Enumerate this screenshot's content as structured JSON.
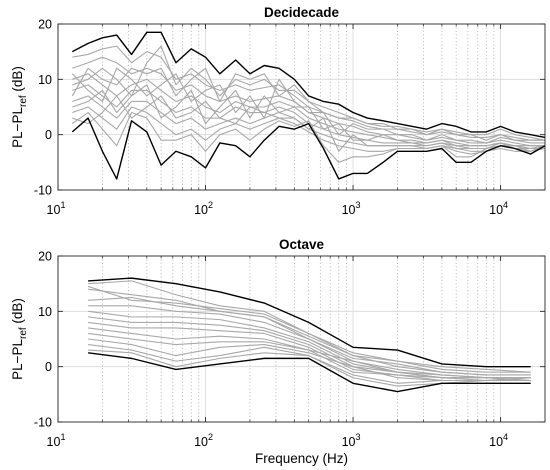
{
  "chart_data": [
    {
      "type": "line",
      "title": "Decidecade",
      "xlabel": "",
      "ylabel": {
        "main": "PL−PL",
        "sub": "ref",
        "unit": " (dB)"
      },
      "xscale": "log",
      "xlim": [
        10,
        20000
      ],
      "ylim": [
        -10,
        20
      ],
      "yticks": [
        -10,
        0,
        10,
        20
      ],
      "xticks": [
        {
          "base": "10",
          "exp": "1",
          "value": 10
        },
        {
          "base": "10",
          "exp": "2",
          "value": 100
        },
        {
          "base": "10",
          "exp": "3",
          "value": 1000
        },
        {
          "base": "10",
          "exp": "4",
          "value": 10000
        }
      ],
      "grid": {
        "major": true,
        "minor_x_dotted": true
      },
      "envelope": {
        "x": [
          12.5,
          16,
          20,
          25,
          31.5,
          40,
          50,
          63,
          80,
          100,
          125,
          160,
          200,
          250,
          315,
          400,
          500,
          630,
          800,
          1000,
          1250,
          1600,
          2000,
          2500,
          3150,
          4000,
          5000,
          6300,
          8000,
          10000,
          12500,
          16000,
          20000
        ],
        "upper": [
          15,
          16.5,
          17.5,
          18,
          14.5,
          18.5,
          18.5,
          13,
          15.5,
          14,
          11,
          13.5,
          11,
          12.5,
          12,
          10,
          7,
          6,
          5.5,
          4,
          3,
          2.5,
          2,
          1.5,
          1,
          2,
          1.5,
          0.5,
          0.5,
          1.5,
          0.5,
          0,
          -0.5
        ],
        "lower": [
          0.5,
          3,
          -3,
          -8,
          2.5,
          0.5,
          -5.5,
          -3,
          -4,
          -6,
          -1.5,
          -2,
          -4,
          -1,
          1.5,
          1,
          2,
          -2.5,
          -8,
          -7,
          -7,
          -5,
          -3,
          -3,
          -3,
          -2.5,
          -5,
          -5,
          -3,
          -2,
          -2.5,
          -3.5,
          -2
        ]
      },
      "series_color": "#a8a8a8",
      "envelope_color": "#000000",
      "series": [
        {
          "values": [
            14,
            14.5,
            15.5,
            16,
            13,
            15,
            14,
            10,
            11,
            9,
            8,
            9,
            8,
            8.5,
            9,
            7,
            5,
            4,
            3,
            2.5,
            1.5,
            1,
            1,
            0.5,
            0,
            0.5,
            0,
            -0.5,
            -0.5,
            0,
            -0.5,
            -1,
            -1
          ]
        },
        {
          "values": [
            12,
            13,
            14,
            13,
            11,
            12,
            11,
            8,
            9,
            7,
            6,
            7,
            6,
            6.5,
            7,
            6,
            4,
            3,
            2,
            1.5,
            0.5,
            0,
            0,
            -0.5,
            -1,
            -0.5,
            -1,
            -1.5,
            -1.5,
            -1,
            -1.5,
            -2,
            -2
          ]
        },
        {
          "values": [
            10,
            11,
            9,
            7,
            9,
            10,
            8,
            6,
            7,
            5,
            4,
            6,
            5,
            5,
            6,
            5,
            3,
            2,
            1,
            0.5,
            0,
            -0.5,
            -1,
            -1,
            -1.5,
            -1,
            -1.5,
            -2,
            -2,
            -1.5,
            -2,
            -2.5,
            -2.5
          ]
        },
        {
          "values": [
            8,
            9,
            7,
            5,
            8,
            8,
            6,
            4,
            5,
            3,
            3,
            5,
            4,
            4,
            5,
            4,
            2,
            1,
            0,
            -0.5,
            -1,
            -1.5,
            -1.5,
            -1.5,
            -2,
            -1.5,
            -2,
            -2.5,
            -2.5,
            -2,
            -2.5,
            -3,
            -2.5
          ]
        },
        {
          "values": [
            6,
            7,
            5,
            3,
            6,
            6,
            4,
            2,
            3,
            1,
            2,
            3,
            2,
            3,
            4,
            3,
            1,
            0,
            -1,
            -1.5,
            -2,
            -2,
            -2,
            -2,
            -2.5,
            -2,
            -2.5,
            -3,
            -3,
            -2.5,
            -3,
            -3,
            -2
          ]
        },
        {
          "values": [
            4,
            5,
            3,
            1,
            5,
            4,
            2,
            0,
            1,
            -1,
            1,
            2,
            1,
            2,
            3,
            2,
            0.5,
            -1,
            -2,
            -2.5,
            -3,
            -3,
            -2.5,
            -2.5,
            -2.5,
            -2,
            -3,
            -3.5,
            -3,
            -2,
            -2,
            -2.5,
            -2
          ]
        },
        {
          "values": [
            2,
            4,
            1,
            -2,
            4,
            3,
            -1,
            -1,
            0,
            -3,
            0,
            1,
            -1,
            1,
            2.5,
            1.5,
            2.5,
            -2,
            -5,
            -4,
            -4,
            -3.5,
            -2.5,
            -2.5,
            -2.5,
            -2,
            -4,
            -4,
            -2.5,
            -2,
            -2,
            -3,
            -2
          ]
        },
        {
          "values": [
            9,
            10,
            12,
            10,
            7,
            13,
            16,
            9,
            12,
            10,
            7,
            10,
            9,
            10,
            8,
            8,
            6,
            5,
            4,
            3,
            2,
            1.5,
            1.5,
            1,
            0.5,
            1,
            0.5,
            0,
            0,
            1,
            0,
            -0.5,
            -1
          ]
        },
        {
          "values": [
            11,
            8,
            6,
            12,
            10,
            7,
            9,
            11,
            6,
            8,
            9,
            4,
            7,
            3,
            10,
            6,
            4,
            4,
            0,
            2,
            1,
            1,
            0,
            0,
            -1,
            0,
            -1,
            -1,
            -1.5,
            -0.5,
            -1,
            -1.5,
            -1.5
          ]
        },
        {
          "values": [
            5,
            6,
            8,
            4,
            7,
            9,
            3,
            5,
            8,
            2,
            5,
            8,
            3,
            7,
            4,
            5,
            5,
            1,
            2,
            -1,
            -1,
            0,
            -1,
            -1.5,
            -1.5,
            -1,
            -2,
            -2,
            -2,
            -1.5,
            -2,
            -2,
            -2
          ]
        },
        {
          "values": [
            3,
            2,
            4,
            7,
            3,
            5,
            7,
            3,
            4,
            6,
            3,
            2,
            5,
            4,
            3,
            3,
            1,
            3,
            -3,
            0,
            -2,
            -2,
            -2,
            -2,
            -2,
            -1.5,
            -2.5,
            -2.5,
            -2.5,
            -1.5,
            -2.5,
            -2.5,
            -2
          ]
        },
        {
          "values": [
            7,
            12,
            10,
            9,
            12,
            11,
            12,
            7,
            10,
            12,
            6,
            11,
            10,
            11,
            7,
            9,
            6,
            4,
            3,
            3,
            2,
            2,
            1,
            1,
            0,
            1,
            0,
            0,
            -1,
            0,
            -1,
            -1,
            -1
          ]
        }
      ]
    },
    {
      "type": "line",
      "title": "Octave",
      "xlabel": "Frequency (Hz)",
      "ylabel": {
        "main": "PL−PL",
        "sub": "ref",
        "unit": " (dB)"
      },
      "xscale": "log",
      "xlim": [
        10,
        20000
      ],
      "ylim": [
        -10,
        20
      ],
      "yticks": [
        -10,
        0,
        10,
        20
      ],
      "xticks": [
        {
          "base": "10",
          "exp": "1",
          "value": 10
        },
        {
          "base": "10",
          "exp": "2",
          "value": 100
        },
        {
          "base": "10",
          "exp": "3",
          "value": 1000
        },
        {
          "base": "10",
          "exp": "4",
          "value": 10000
        }
      ],
      "grid": {
        "major": true,
        "minor_x_dotted": true
      },
      "envelope": {
        "x": [
          16,
          31.5,
          63,
          125,
          250,
          500,
          1000,
          2000,
          4000,
          8000,
          16000
        ],
        "upper": [
          15.5,
          16,
          15,
          13.5,
          11.5,
          8,
          3.5,
          3,
          0.5,
          0,
          0
        ],
        "lower": [
          2.5,
          1.5,
          -0.5,
          0.5,
          1.5,
          1.5,
          -3,
          -4.5,
          -3,
          -3,
          -3
        ]
      },
      "series_color": "#a8a8a8",
      "envelope_color": "#000000",
      "series": [
        {
          "values": [
            15,
            15.5,
            13,
            11,
            10,
            6,
            2,
            0,
            -1,
            -1.5,
            -1.5
          ]
        },
        {
          "values": [
            14,
            13,
            12,
            10,
            9,
            5,
            1.5,
            0.5,
            -1,
            -1.5,
            -1.5
          ]
        },
        {
          "values": [
            12,
            12.5,
            11,
            10,
            9,
            5.5,
            2,
            1,
            -0.5,
            -1,
            -1
          ]
        },
        {
          "values": [
            11,
            11,
            10,
            9.5,
            8,
            5,
            1,
            -0.5,
            -1.5,
            -2,
            -2
          ]
        },
        {
          "values": [
            10,
            9,
            9,
            8.5,
            7,
            4.5,
            0.5,
            -1,
            -1.5,
            -2,
            -2
          ]
        },
        {
          "values": [
            9,
            8,
            8,
            7.5,
            6.5,
            4,
            0,
            -1,
            -2,
            -2,
            -2.5
          ]
        },
        {
          "values": [
            8,
            7,
            7,
            6.5,
            6,
            3.5,
            -0.5,
            -1.5,
            -2,
            -2.5,
            -2.5
          ]
        },
        {
          "values": [
            7,
            6,
            5,
            5.5,
            5,
            3,
            -1,
            -1.5,
            -2.5,
            -2.5,
            -2.5
          ]
        },
        {
          "values": [
            6,
            5,
            4,
            4.5,
            4.5,
            3,
            1,
            -1,
            -2,
            -2,
            -2.5
          ]
        },
        {
          "values": [
            5,
            4,
            2,
            3.5,
            4,
            2.5,
            0,
            -2,
            -2.5,
            -2.5,
            -2
          ]
        },
        {
          "values": [
            4,
            3,
            1,
            2,
            3.5,
            2,
            -1.5,
            -3,
            -2.5,
            -2.5,
            -2
          ]
        },
        {
          "values": [
            3,
            2.5,
            0,
            1.5,
            2.5,
            2,
            -2,
            -3.5,
            -3,
            -2.5,
            -2.5
          ]
        },
        {
          "values": [
            14.5,
            12,
            11.5,
            10.5,
            9.5,
            6,
            2.5,
            1,
            0,
            -0.5,
            -1
          ]
        }
      ]
    }
  ]
}
